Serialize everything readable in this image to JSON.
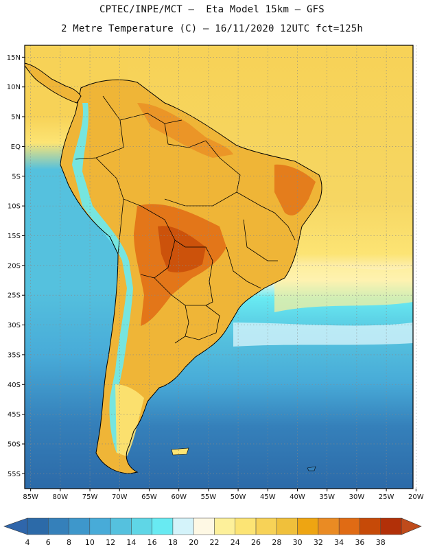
{
  "title": {
    "line1": "CPTEC/INPE/MCT –  Eta Model 15km – GFS",
    "line2": "2 Metre Temperature (C) – 16/11/2020 12UTC fct=125h"
  },
  "axes": {
    "lat_labels": [
      "15N",
      "10N",
      "5N",
      "EQ",
      "5S",
      "10S",
      "15S",
      "20S",
      "25S",
      "30S",
      "35S",
      "40S",
      "45S",
      "50S",
      "55S"
    ],
    "lat_values": [
      15,
      10,
      5,
      0,
      -5,
      -10,
      -15,
      -20,
      -25,
      -30,
      -35,
      -40,
      -45,
      -50,
      -55
    ],
    "lon_labels": [
      "85W",
      "80W",
      "75W",
      "70W",
      "65W",
      "60W",
      "55W",
      "50W",
      "45W",
      "40W",
      "35W",
      "30W",
      "25W",
      "20W"
    ],
    "lon_values": [
      -85,
      -80,
      -75,
      -70,
      -65,
      -60,
      -55,
      -50,
      -45,
      -40,
      -35,
      -30,
      -25,
      -20
    ],
    "lat_range": [
      -57.5,
      17
    ],
    "lon_range": [
      -86,
      -20.5
    ]
  },
  "colorbar": {
    "labels": [
      "4",
      "6",
      "8",
      "10",
      "12",
      "14",
      "16",
      "18",
      "20",
      "22",
      "24",
      "26",
      "28",
      "30",
      "32",
      "34",
      "36",
      "38"
    ],
    "colors": [
      "#2c6aa8",
      "#3580ba",
      "#3e97cb",
      "#48abd8",
      "#55c1de",
      "#5fd6e6",
      "#68eaf2",
      "#d4f3fa",
      "#fef8e4",
      "#fdf09a",
      "#fce474",
      "#f7d257",
      "#f0c03b",
      "#eea512",
      "#ea8b23",
      "#e06b14",
      "#c64a08",
      "#b23008"
    ],
    "low_arrow_color": "#2f66ab",
    "high_arrow_color": "#bf4b1b"
  },
  "colors": {
    "border": "#000000",
    "grid": "#888888",
    "ocean_base": "#4fbde0",
    "land_base": "#efb537"
  }
}
